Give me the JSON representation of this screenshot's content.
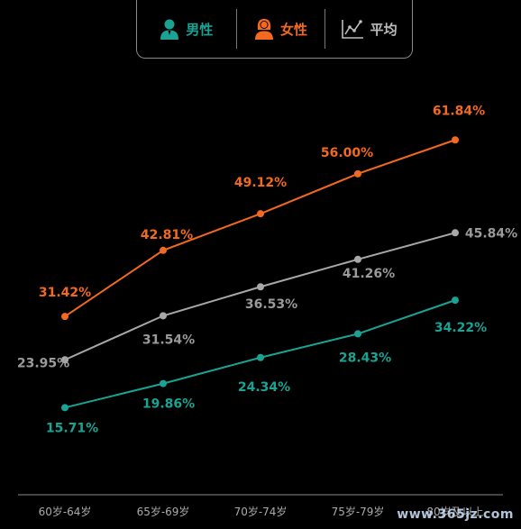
{
  "legend": {
    "items": [
      {
        "label": "男性",
        "color": "#1aa393",
        "icon": "male-user-icon"
      },
      {
        "label": "女性",
        "color": "#f2691f",
        "icon": "female-user-icon"
      },
      {
        "label": "平均",
        "color": "#bdbdbd",
        "icon": "line-chart-icon"
      }
    ]
  },
  "chart_data": {
    "type": "line",
    "categories": [
      "60岁-64岁",
      "65岁-69岁",
      "70岁-74岁",
      "75岁-79岁",
      "80岁及以上"
    ],
    "series": [
      {
        "name": "女性",
        "color": "#f2691f",
        "values": [
          31.42,
          42.81,
          49.12,
          56.0,
          61.84
        ],
        "labels": [
          "31.42%",
          "42.81%",
          "49.12%",
          "56.00%",
          "61.84%"
        ]
      },
      {
        "name": "平均",
        "color": "#a8a8a8",
        "values": [
          23.95,
          31.54,
          36.53,
          41.26,
          45.84
        ],
        "labels": [
          "23.95%",
          "31.54%",
          "36.53%",
          "41.26%",
          "45.84%"
        ]
      },
      {
        "name": "男性",
        "color": "#1aa393",
        "values": [
          15.71,
          19.86,
          24.34,
          28.43,
          34.22
        ],
        "labels": [
          "15.71%",
          "19.86%",
          "24.34%",
          "28.43%",
          "34.22%"
        ]
      }
    ],
    "ylim": [
      0,
      70
    ],
    "grid": false,
    "legend_position": "top"
  },
  "watermark": "www.365jz.com"
}
